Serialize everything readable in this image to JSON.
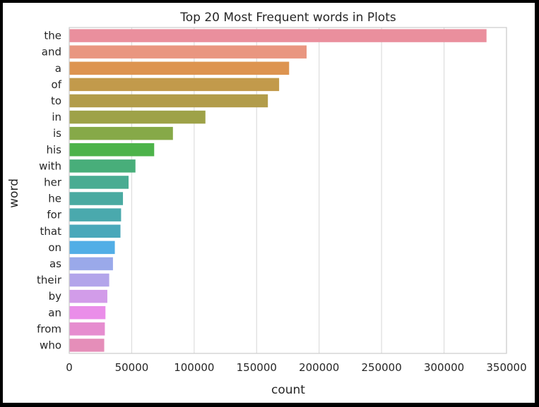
{
  "chart_data": {
    "type": "bar",
    "orientation": "horizontal",
    "title": "Top 20 Most Frequent words in Plots",
    "xlabel": "count",
    "ylabel": "word",
    "xlim": [
      0,
      350000
    ],
    "xticks": [
      0,
      50000,
      100000,
      150000,
      200000,
      250000,
      300000,
      350000
    ],
    "grid": "vertical",
    "categories": [
      "the",
      "and",
      "a",
      "of",
      "to",
      "in",
      "is",
      "his",
      "with",
      "her",
      "he",
      "for",
      "that",
      "on",
      "as",
      "their",
      "by",
      "an",
      "from",
      "who"
    ],
    "values": [
      334000,
      190000,
      176000,
      168000,
      159000,
      109000,
      83000,
      68000,
      53000,
      47500,
      43000,
      41500,
      41000,
      36500,
      35000,
      32000,
      30500,
      29000,
      28500,
      28000
    ],
    "colors": [
      "#ea8f9d",
      "#e99680",
      "#dd9450",
      "#c29a4b",
      "#b29c4a",
      "#9ea248",
      "#86a948",
      "#4db34a",
      "#48ae7a",
      "#49ac92",
      "#4aaaa1",
      "#4aa9ad",
      "#49a8ba",
      "#52aee6",
      "#9aa9ea",
      "#b3a5ea",
      "#d29ce9",
      "#ea8ee9",
      "#e68dcf",
      "#e58eb9"
    ]
  }
}
